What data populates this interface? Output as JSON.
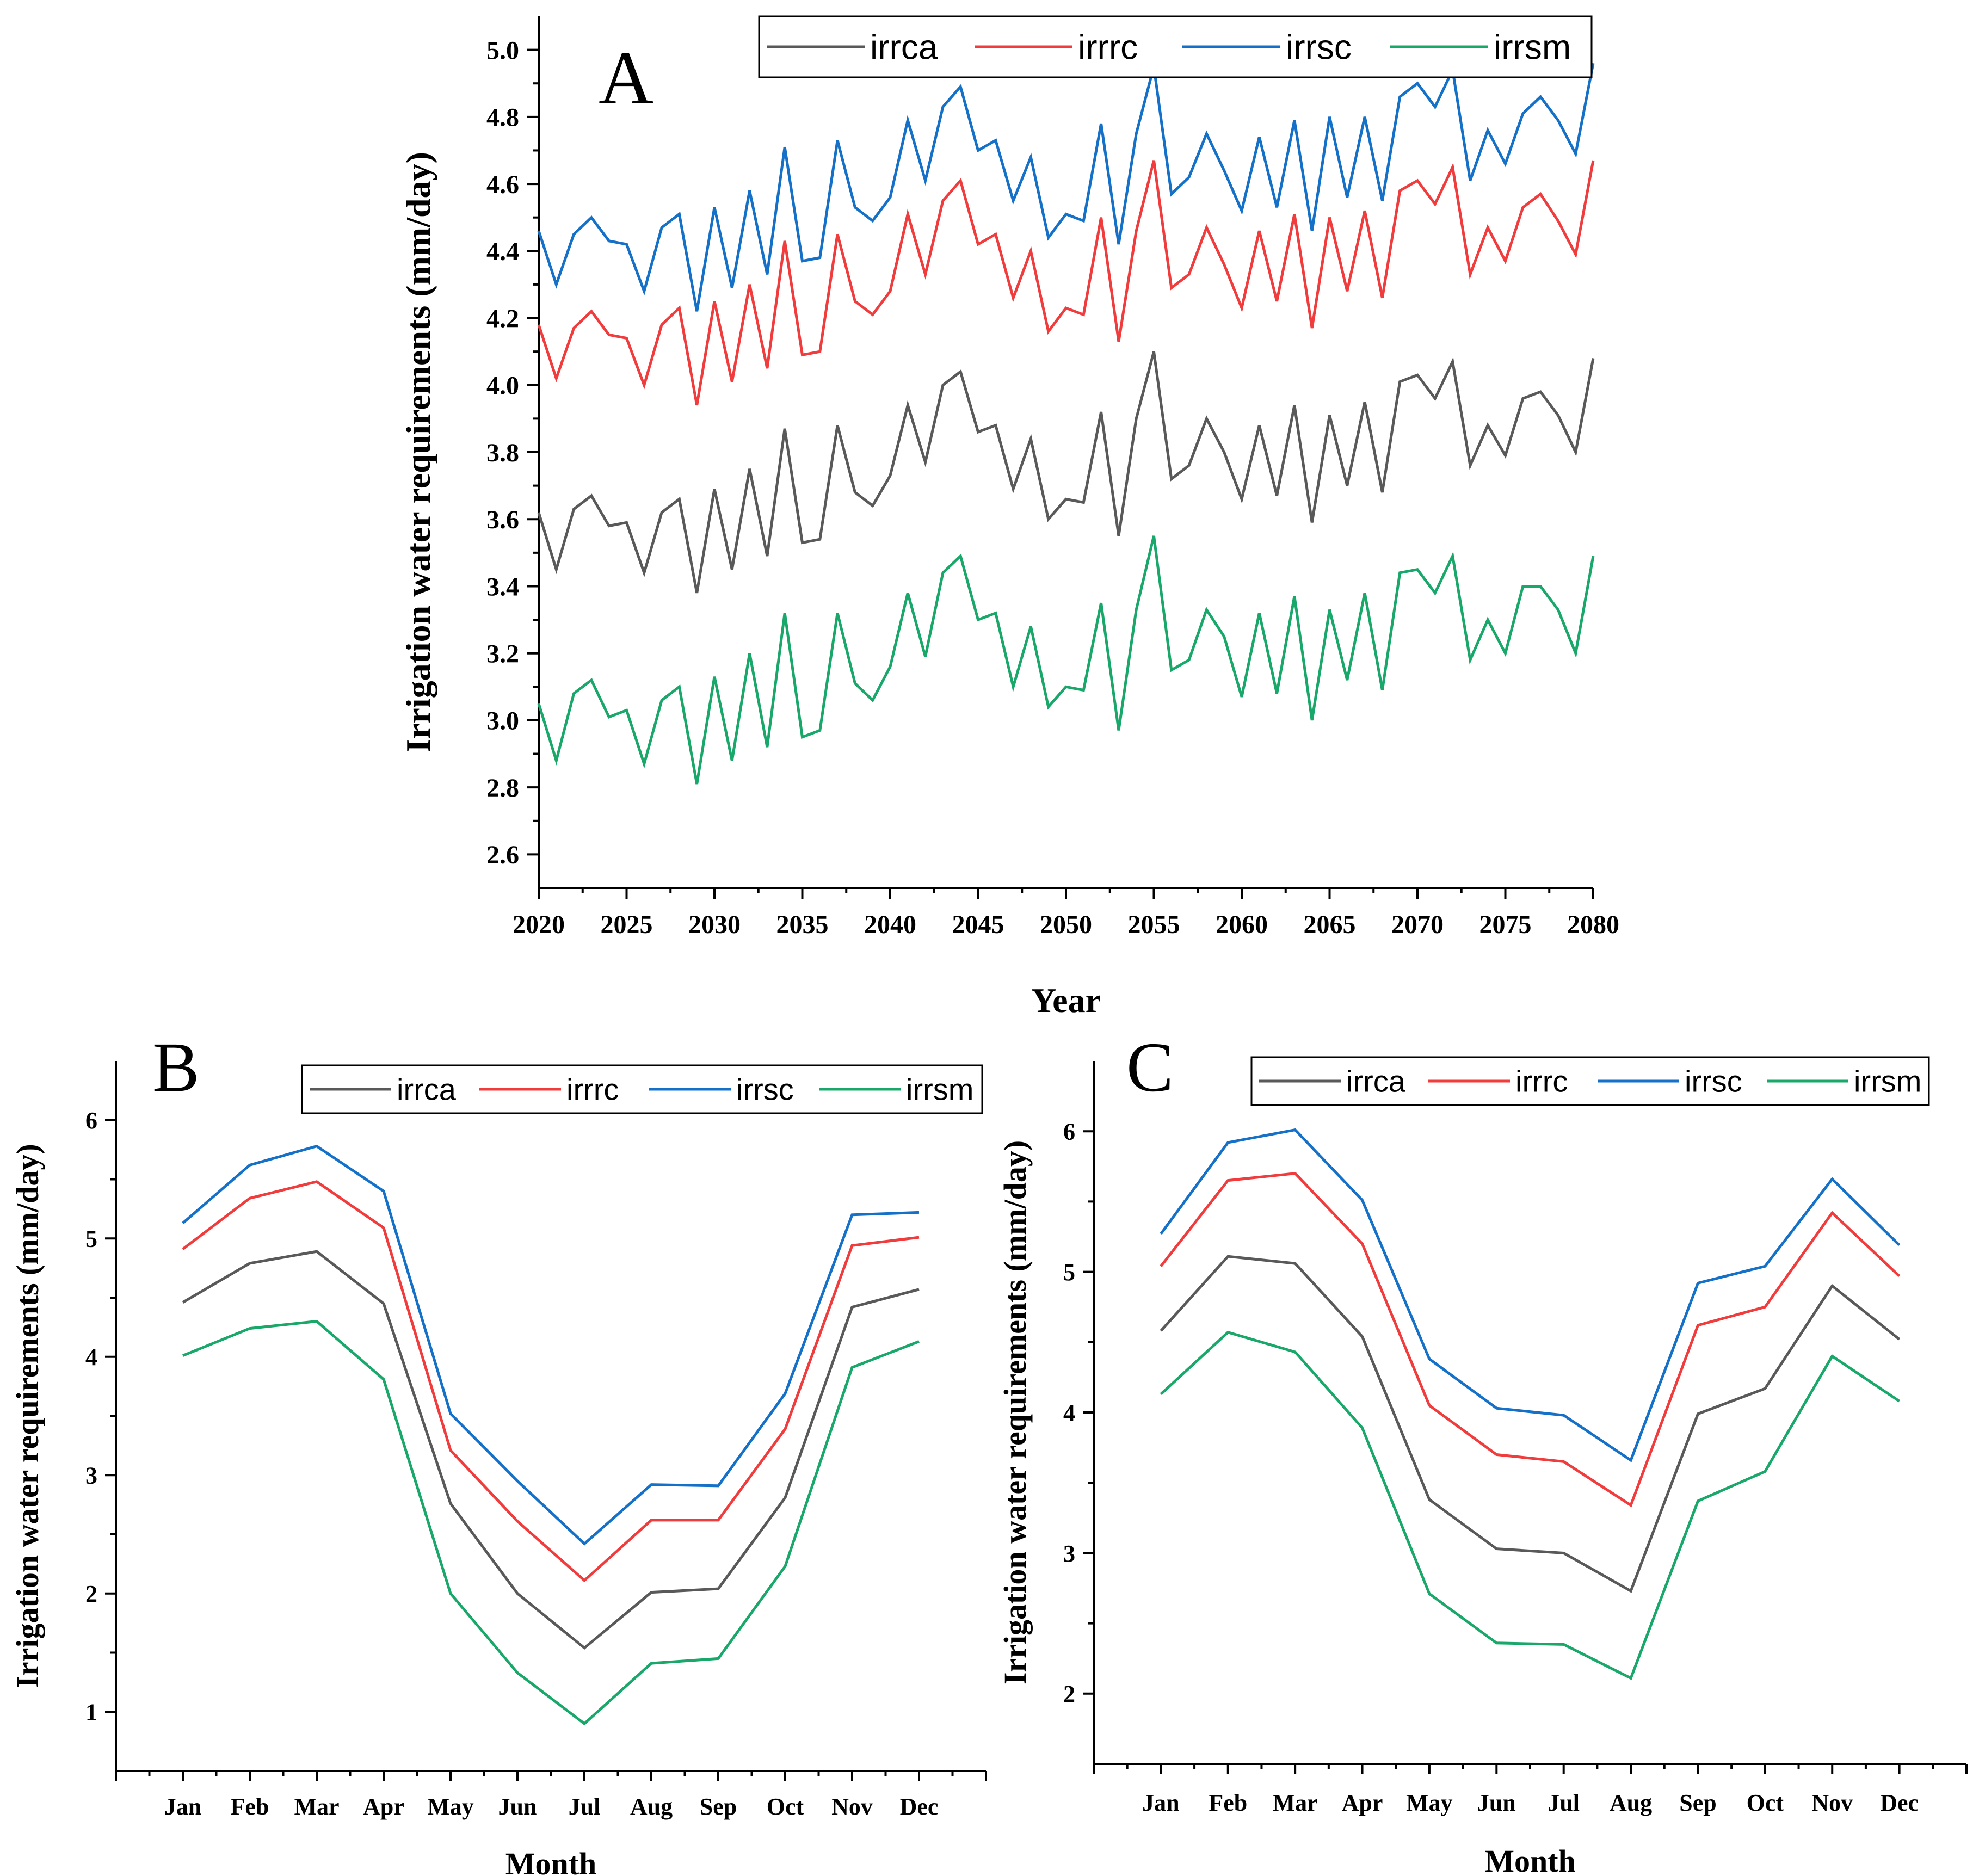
{
  "colors": {
    "irrca": "#595959",
    "irrrc": "#f03c3c",
    "irrsc": "#1570c8",
    "irrsm": "#19a86a"
  },
  "chart_data": [
    {
      "id": "A",
      "type": "line",
      "panel_label": "A",
      "xlabel": "Year",
      "ylabel": "Irrigation water requirements (mm/day)",
      "xlim": [
        2020,
        2080
      ],
      "ylim": [
        2.5,
        5.1
      ],
      "x_ticks": [
        2020,
        2025,
        2030,
        2035,
        2040,
        2045,
        2050,
        2055,
        2060,
        2065,
        2070,
        2075,
        2080
      ],
      "x_tick_labels": [
        "2020",
        "2025",
        "2030",
        "2035",
        "2040",
        "2045",
        "2050",
        "2055",
        "2060",
        "2065",
        "2070",
        "2075",
        "2080"
      ],
      "y_ticks": [
        2.6,
        2.8,
        3.0,
        3.2,
        3.4,
        3.6,
        3.8,
        4.0,
        4.2,
        4.4,
        4.6,
        4.8,
        5.0
      ],
      "y_tick_labels": [
        "2.6",
        "2.8",
        "3.0",
        "3.2",
        "3.4",
        "3.6",
        "3.8",
        "4.0",
        "4.2",
        "4.4",
        "4.6",
        "4.8",
        "5.0"
      ],
      "legend": [
        "irrca",
        "irrrc",
        "irrsc",
        "irrsm"
      ],
      "x": [
        2020,
        2021,
        2022,
        2023,
        2024,
        2025,
        2026,
        2027,
        2028,
        2029,
        2030,
        2031,
        2032,
        2033,
        2034,
        2035,
        2036,
        2037,
        2038,
        2039,
        2040,
        2041,
        2042,
        2043,
        2044,
        2045,
        2046,
        2047,
        2048,
        2049,
        2050,
        2051,
        2052,
        2053,
        2054,
        2055,
        2056,
        2057,
        2058,
        2059,
        2060,
        2061,
        2062,
        2063,
        2064,
        2065,
        2066,
        2067,
        2068,
        2069,
        2070,
        2071,
        2072,
        2073,
        2074,
        2075,
        2076,
        2077,
        2078,
        2079,
        2080
      ],
      "series": [
        {
          "name": "irrca",
          "values": [
            3.62,
            3.45,
            3.63,
            3.67,
            3.58,
            3.59,
            3.44,
            3.62,
            3.66,
            3.38,
            3.69,
            3.45,
            3.75,
            3.49,
            3.87,
            3.53,
            3.54,
            3.88,
            3.68,
            3.64,
            3.73,
            3.94,
            3.77,
            4.0,
            4.04,
            3.86,
            3.88,
            3.69,
            3.84,
            3.6,
            3.66,
            3.65,
            3.92,
            3.55,
            3.9,
            4.1,
            3.72,
            3.76,
            3.9,
            3.8,
            3.66,
            3.88,
            3.67,
            3.94,
            3.59,
            3.91,
            3.7,
            3.95,
            3.68,
            4.01,
            4.03,
            3.96,
            4.07,
            3.76,
            3.88,
            3.79,
            3.96,
            3.98,
            3.91,
            3.8,
            4.08
          ]
        },
        {
          "name": "irrrc",
          "values": [
            4.18,
            4.02,
            4.17,
            4.22,
            4.15,
            4.14,
            4.0,
            4.18,
            4.23,
            3.94,
            4.25,
            4.01,
            4.3,
            4.05,
            4.43,
            4.09,
            4.1,
            4.45,
            4.25,
            4.21,
            4.28,
            4.51,
            4.33,
            4.55,
            4.61,
            4.42,
            4.45,
            4.26,
            4.4,
            4.16,
            4.23,
            4.21,
            4.5,
            4.13,
            4.46,
            4.67,
            4.29,
            4.33,
            4.47,
            4.36,
            4.23,
            4.46,
            4.25,
            4.51,
            4.17,
            4.5,
            4.28,
            4.52,
            4.26,
            4.58,
            4.61,
            4.54,
            4.65,
            4.33,
            4.47,
            4.37,
            4.53,
            4.57,
            4.49,
            4.39,
            4.67
          ]
        },
        {
          "name": "irrsc",
          "values": [
            4.46,
            4.3,
            4.45,
            4.5,
            4.43,
            4.42,
            4.28,
            4.47,
            4.51,
            4.22,
            4.53,
            4.29,
            4.58,
            4.33,
            4.71,
            4.37,
            4.38,
            4.73,
            4.53,
            4.49,
            4.56,
            4.79,
            4.61,
            4.83,
            4.89,
            4.7,
            4.73,
            4.55,
            4.68,
            4.44,
            4.51,
            4.49,
            4.78,
            4.42,
            4.75,
            4.95,
            4.57,
            4.62,
            4.75,
            4.64,
            4.52,
            4.74,
            4.53,
            4.79,
            4.46,
            4.8,
            4.56,
            4.8,
            4.55,
            4.86,
            4.9,
            4.83,
            4.94,
            4.61,
            4.76,
            4.66,
            4.81,
            4.86,
            4.79,
            4.69,
            4.96
          ]
        },
        {
          "name": "irrsm",
          "values": [
            3.05,
            2.88,
            3.08,
            3.12,
            3.01,
            3.03,
            2.87,
            3.06,
            3.1,
            2.81,
            3.13,
            2.88,
            3.2,
            2.92,
            3.32,
            2.95,
            2.97,
            3.32,
            3.11,
            3.06,
            3.16,
            3.38,
            3.19,
            3.44,
            3.49,
            3.3,
            3.32,
            3.1,
            3.28,
            3.04,
            3.1,
            3.09,
            3.35,
            2.97,
            3.33,
            3.55,
            3.15,
            3.18,
            3.33,
            3.25,
            3.07,
            3.32,
            3.08,
            3.37,
            3.0,
            3.33,
            3.12,
            3.38,
            3.09,
            3.44,
            3.45,
            3.38,
            3.49,
            3.18,
            3.3,
            3.2,
            3.4,
            3.4,
            3.33,
            3.2,
            3.49
          ]
        }
      ]
    },
    {
      "id": "B",
      "type": "line",
      "panel_label": "B",
      "xlabel": "Month",
      "ylabel": "Irrigation water requirements (mm/day)",
      "ylim": [
        0.5,
        6.5
      ],
      "y_ticks": [
        1,
        2,
        3,
        4,
        5,
        6
      ],
      "y_tick_labels": [
        "1",
        "2",
        "3",
        "4",
        "5",
        "6"
      ],
      "categories": [
        "Jan",
        "Feb",
        "Mar",
        "Apr",
        "May",
        "Jun",
        "Jul",
        "Aug",
        "Sep",
        "Oct",
        "Nov",
        "Dec"
      ],
      "legend": [
        "irrca",
        "irrrc",
        "irrsc",
        "irrsm"
      ],
      "series": [
        {
          "name": "irrca",
          "values": [
            4.46,
            4.79,
            4.89,
            4.45,
            2.76,
            2.0,
            1.54,
            2.01,
            2.04,
            2.81,
            4.42,
            4.57
          ]
        },
        {
          "name": "irrrc",
          "values": [
            4.91,
            5.34,
            5.48,
            5.09,
            3.21,
            2.61,
            2.11,
            2.62,
            2.62,
            3.39,
            4.94,
            5.01
          ]
        },
        {
          "name": "irrsc",
          "values": [
            5.13,
            5.62,
            5.78,
            5.4,
            3.52,
            2.95,
            2.42,
            2.92,
            2.91,
            3.69,
            5.2,
            5.22
          ]
        },
        {
          "name": "irrsm",
          "values": [
            4.01,
            4.24,
            4.3,
            3.81,
            2.0,
            1.33,
            0.9,
            1.41,
            1.45,
            2.23,
            3.91,
            4.13
          ]
        }
      ]
    },
    {
      "id": "C",
      "type": "line",
      "panel_label": "C",
      "xlabel": "Month",
      "ylabel": "Irrigation water requirements (mm/day)",
      "ylim": [
        1.5,
        6.5
      ],
      "y_ticks": [
        2,
        3,
        4,
        5,
        6
      ],
      "y_tick_labels": [
        "2",
        "3",
        "4",
        "5",
        "6"
      ],
      "categories": [
        "Jan",
        "Feb",
        "Mar",
        "Apr",
        "May",
        "Jun",
        "Jul",
        "Aug",
        "Sep",
        "Oct",
        "Nov",
        "Dec"
      ],
      "legend": [
        "irrca",
        "irrrc",
        "irrsc",
        "irrsm"
      ],
      "series": [
        {
          "name": "irrca",
          "values": [
            4.58,
            5.11,
            5.06,
            4.54,
            3.38,
            3.03,
            3.0,
            2.73,
            3.99,
            4.17,
            4.9,
            4.52
          ]
        },
        {
          "name": "irrrc",
          "values": [
            5.04,
            5.65,
            5.7,
            5.2,
            4.05,
            3.7,
            3.65,
            3.34,
            4.62,
            4.75,
            5.42,
            4.97
          ]
        },
        {
          "name": "irrsc",
          "values": [
            5.27,
            5.92,
            6.01,
            5.51,
            4.38,
            4.03,
            3.98,
            3.66,
            4.92,
            5.04,
            5.66,
            5.19
          ]
        },
        {
          "name": "irrsm",
          "values": [
            4.13,
            4.57,
            4.43,
            3.89,
            2.71,
            2.36,
            2.35,
            2.11,
            3.37,
            3.58,
            4.4,
            4.08
          ]
        }
      ]
    }
  ]
}
